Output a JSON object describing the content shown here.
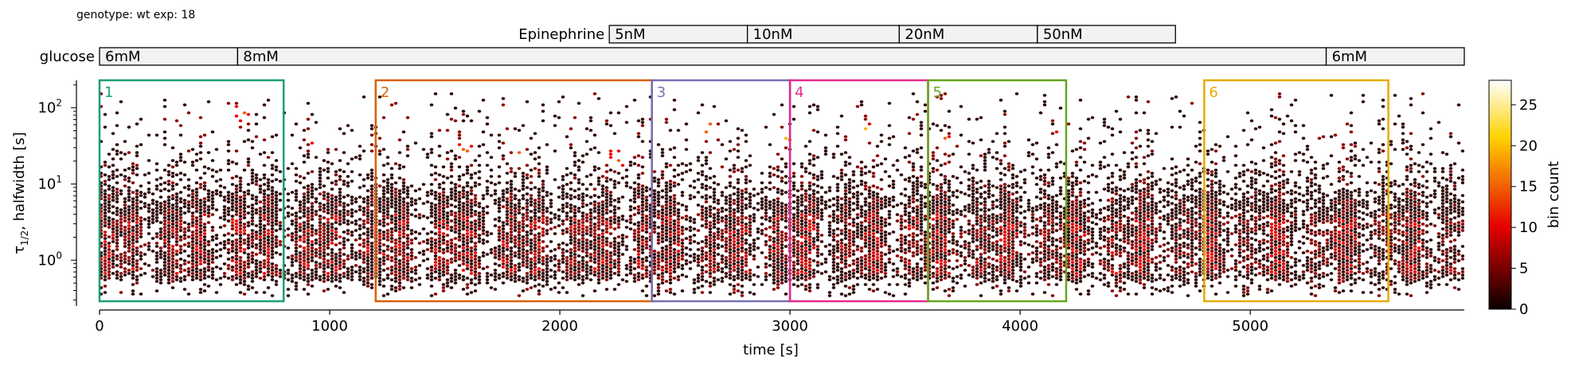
{
  "header": {
    "genotype_line": "genotype: wt  exp: 18"
  },
  "chart_data": {
    "type": "heatmap",
    "subtype": "hexbin",
    "xlabel": "time [s]",
    "ylabel_main": "τ",
    "ylabel_sub": "1/2",
    "ylabel_rest": ", halfwidth [s]",
    "xlim": [
      0,
      5930
    ],
    "ylim": [
      0.25,
      230
    ],
    "yscale": "log",
    "x_ticks": [
      0,
      1000,
      2000,
      3000,
      4000,
      5000
    ],
    "x_tick_labels": [
      "0",
      "1000",
      "2000",
      "3000",
      "4000",
      "5000"
    ],
    "y_ticks": [
      1,
      10,
      100
    ],
    "y_tick_labels": [
      "10",
      "10",
      "10"
    ],
    "y_tick_exponents": [
      "0",
      "1",
      "2"
    ],
    "colormap": "hot",
    "colorbar": {
      "label": "bin count",
      "range": [
        0,
        28
      ],
      "ticks": [
        0,
        5,
        10,
        15,
        20,
        25
      ],
      "tick_labels": [
        "0",
        "5",
        "10",
        "15",
        "20",
        "25"
      ]
    },
    "hot_spots": [
      {
        "t": 440,
        "y": 60
      },
      {
        "t": 620,
        "y": 90
      },
      {
        "t": 950,
        "y": 40
      },
      {
        "t": 1600,
        "y": 30
      },
      {
        "t": 1820,
        "y": 25
      },
      {
        "t": 2250,
        "y": 22
      },
      {
        "t": 2650,
        "y": 55
      },
      {
        "t": 2985,
        "y": 40
      },
      {
        "t": 3330,
        "y": 50
      },
      {
        "t": 3680,
        "y": 35
      },
      {
        "t": 4180,
        "y": 55
      },
      {
        "t": 5300,
        "y": 60
      }
    ],
    "windows": [
      {
        "label": "1",
        "start": 0,
        "end": 800,
        "color": "#1a9e77"
      },
      {
        "label": "2",
        "start": 1200,
        "end": 2400,
        "color": "#d95f02"
      },
      {
        "label": "3",
        "start": 2400,
        "end": 3000,
        "color": "#7570b3"
      },
      {
        "label": "4",
        "start": 3000,
        "end": 3600,
        "color": "#e7298a"
      },
      {
        "label": "5",
        "start": 3600,
        "end": 4200,
        "color": "#66a61e"
      },
      {
        "label": "6",
        "start": 4800,
        "end": 5600,
        "color": "#e6ab02"
      }
    ],
    "protocol_bars": [
      {
        "label": "Epinephrine",
        "segments": [
          {
            "label": "5nM",
            "start": 2215,
            "end": 2815
          },
          {
            "label": "10nM",
            "start": 2815,
            "end": 3475
          },
          {
            "label": "20nM",
            "start": 3475,
            "end": 4075
          },
          {
            "label": "50nM",
            "start": 4075,
            "end": 4675
          }
        ]
      },
      {
        "label": "glucose",
        "segments": [
          {
            "label": "6mM",
            "start": 0,
            "end": 600
          },
          {
            "label": "8mM",
            "start": 600,
            "end": 5330
          },
          {
            "label": "6mM",
            "start": 5330,
            "end": 5930
          }
        ]
      }
    ]
  }
}
